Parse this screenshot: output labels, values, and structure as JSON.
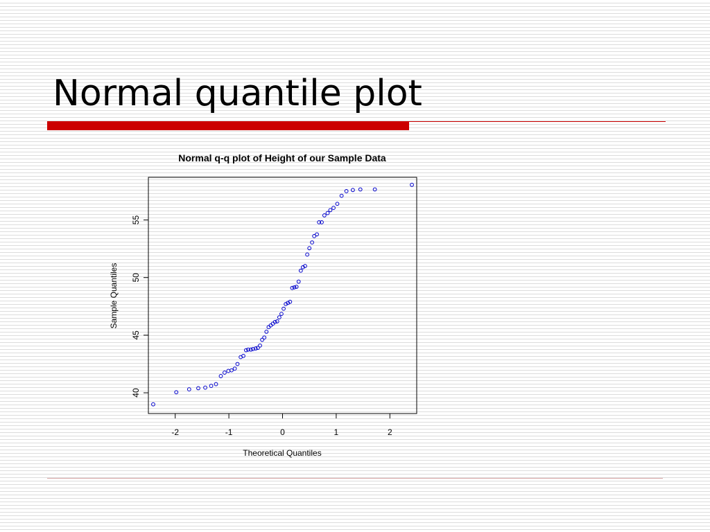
{
  "slide": {
    "title": "Normal quantile plot",
    "accent_color": "#cc0000",
    "rule_color": "#d9a8a8"
  },
  "chart_data": {
    "type": "scatter",
    "title": "Normal q-q plot of Height of our Sample Data",
    "xlabel": "Theoretical Quantiles",
    "ylabel": "Sample Quantiles",
    "xlim": [
      -2.5,
      2.5
    ],
    "ylim": [
      38.2,
      58.7
    ],
    "xticks": [
      -2,
      -1,
      0,
      1,
      2
    ],
    "xtick_labels": [
      "-2",
      "-1",
      "0",
      "1",
      "2"
    ],
    "yticks": [
      40,
      45,
      50,
      55
    ],
    "ytick_labels": [
      "40",
      "45",
      "50",
      "55"
    ],
    "marker": "open-circle",
    "marker_color": "#0000cc",
    "grid": false,
    "points": [
      [
        -2.41,
        39.0
      ],
      [
        -1.98,
        40.05
      ],
      [
        -1.74,
        40.3
      ],
      [
        -1.57,
        40.4
      ],
      [
        -1.44,
        40.45
      ],
      [
        -1.33,
        40.6
      ],
      [
        -1.24,
        40.75
      ],
      [
        -1.15,
        41.45
      ],
      [
        -1.08,
        41.75
      ],
      [
        -1.01,
        41.9
      ],
      [
        -0.95,
        41.95
      ],
      [
        -0.89,
        42.1
      ],
      [
        -0.84,
        42.5
      ],
      [
        -0.78,
        43.1
      ],
      [
        -0.73,
        43.2
      ],
      [
        -0.68,
        43.7
      ],
      [
        -0.64,
        43.75
      ],
      [
        -0.59,
        43.75
      ],
      [
        -0.55,
        43.8
      ],
      [
        -0.5,
        43.85
      ],
      [
        -0.46,
        43.9
      ],
      [
        -0.42,
        44.1
      ],
      [
        -0.38,
        44.6
      ],
      [
        -0.34,
        44.8
      ],
      [
        -0.3,
        45.3
      ],
      [
        -0.26,
        45.7
      ],
      [
        -0.22,
        45.85
      ],
      [
        -0.18,
        46.0
      ],
      [
        -0.14,
        46.15
      ],
      [
        -0.1,
        46.2
      ],
      [
        -0.06,
        46.55
      ],
      [
        -0.02,
        46.85
      ],
      [
        0.02,
        47.3
      ],
      [
        0.06,
        47.7
      ],
      [
        0.1,
        47.8
      ],
      [
        0.14,
        47.9
      ],
      [
        0.18,
        49.1
      ],
      [
        0.22,
        49.15
      ],
      [
        0.26,
        49.2
      ],
      [
        0.3,
        49.65
      ],
      [
        0.34,
        50.6
      ],
      [
        0.38,
        50.9
      ],
      [
        0.42,
        51.0
      ],
      [
        0.46,
        52.0
      ],
      [
        0.5,
        52.55
      ],
      [
        0.55,
        53.05
      ],
      [
        0.59,
        53.6
      ],
      [
        0.64,
        53.75
      ],
      [
        0.68,
        54.8
      ],
      [
        0.73,
        54.8
      ],
      [
        0.78,
        55.4
      ],
      [
        0.84,
        55.6
      ],
      [
        0.89,
        55.85
      ],
      [
        0.95,
        56.05
      ],
      [
        1.02,
        56.4
      ],
      [
        1.1,
        57.1
      ],
      [
        1.19,
        57.5
      ],
      [
        1.31,
        57.6
      ],
      [
        1.45,
        57.65
      ],
      [
        1.72,
        57.65
      ],
      [
        2.41,
        58.05
      ]
    ]
  }
}
